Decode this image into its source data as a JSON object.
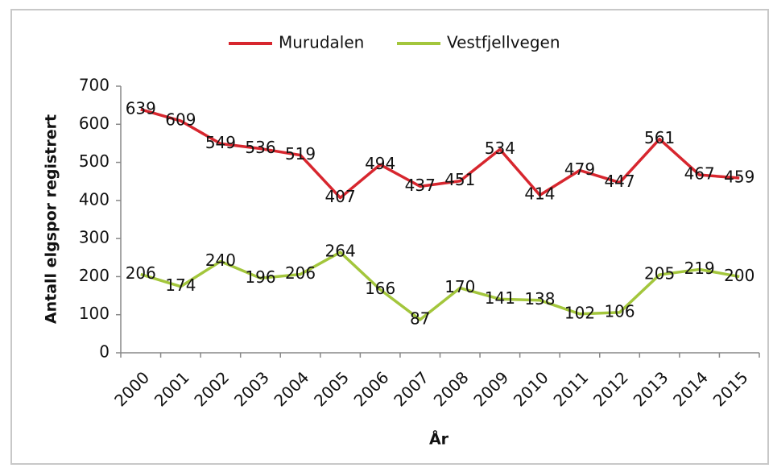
{
  "chart_data": {
    "type": "line",
    "y_label": "Antall elgspor registrert",
    "x_label": "År",
    "categories": [
      "2000",
      "2001",
      "2002",
      "2003",
      "2004",
      "2005",
      "2006",
      "2007",
      "2008",
      "2009",
      "2010",
      "2011",
      "2012",
      "2013",
      "2014",
      "2015"
    ],
    "series": [
      {
        "name": "Murudalen",
        "color": "#d7262e",
        "values": [
          639,
          609,
          549,
          536,
          519,
          407,
          494,
          437,
          451,
          534,
          414,
          479,
          447,
          561,
          467,
          459
        ]
      },
      {
        "name": "Vestfjellvegen",
        "color": "#a3c63c",
        "values": [
          206,
          174,
          240,
          196,
          206,
          264,
          166,
          87,
          170,
          141,
          138,
          102,
          106,
          205,
          219,
          200
        ]
      }
    ],
    "ylim": [
      0,
      700
    ],
    "yticks": [
      0,
      100,
      200,
      300,
      400,
      500,
      600,
      700
    ],
    "legend": "top"
  }
}
